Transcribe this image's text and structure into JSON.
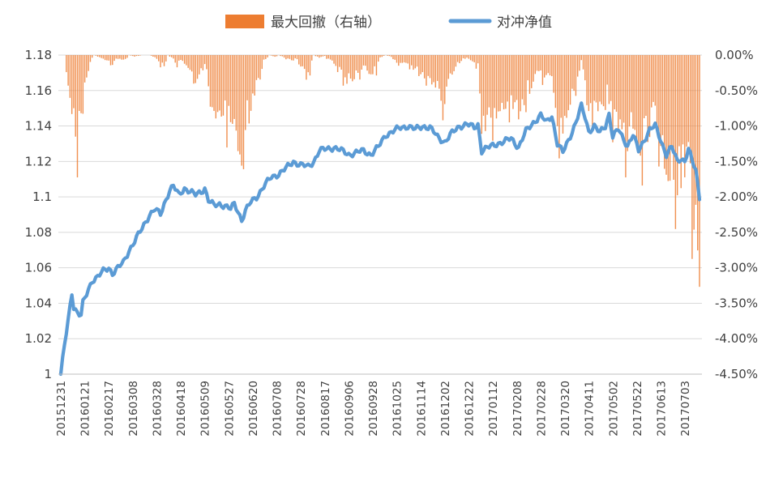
{
  "chart_data": {
    "type": "bar+line",
    "legend": [
      {
        "name": "最大回撤（右轴）",
        "color": "#ED7D31",
        "kind": "bar"
      },
      {
        "name": "对冲净值",
        "color": "#5B9BD5",
        "kind": "line"
      }
    ],
    "legend_placement": "top-center",
    "left_axis": {
      "ylim": [
        1.0,
        1.18
      ],
      "ticks": [
        1,
        1.02,
        1.04,
        1.06,
        1.08,
        1.1,
        1.12,
        1.14,
        1.16,
        1.18
      ],
      "tick_labels": [
        "1",
        "1.02",
        "1.04",
        "1.06",
        "1.08",
        "1.1",
        "1.12",
        "1.14",
        "1.16",
        "1.18"
      ]
    },
    "right_axis": {
      "ylim": [
        -0.045,
        0.0
      ],
      "ticks": [
        0,
        -0.005,
        -0.01,
        -0.015,
        -0.02,
        -0.025,
        -0.03,
        -0.035,
        -0.04,
        -0.045
      ],
      "tick_labels": [
        "0.00%",
        "-0.50%",
        "-1.00%",
        "-1.50%",
        "-2.00%",
        "-2.50%",
        "-3.00%",
        "-3.50%",
        "-4.00%",
        "-4.50%"
      ]
    },
    "x_tick_labels": [
      "20151231",
      "20160121",
      "20160217",
      "20160308",
      "20160328",
      "20160418",
      "20160509",
      "20160527",
      "20160620",
      "20160708",
      "20160728",
      "20160817",
      "20160906",
      "20160928",
      "20161025",
      "20161114",
      "20161202",
      "20161222",
      "20170112",
      "20170208",
      "20170228",
      "20170320",
      "20170411",
      "20170502",
      "20170522",
      "20170613",
      "20170703"
    ],
    "grid": {
      "horizontal": true,
      "vertical": false
    },
    "series": [
      {
        "name": "对冲净值",
        "kind": "line",
        "axis": "left",
        "anchors": [
          [
            0,
            1.0
          ],
          [
            2,
            1.016
          ],
          [
            4,
            1.03
          ],
          [
            6,
            1.046
          ],
          [
            7,
            1.038
          ],
          [
            9,
            1.035
          ],
          [
            11,
            1.033
          ],
          [
            12,
            1.04
          ],
          [
            14,
            1.045
          ],
          [
            17,
            1.053
          ],
          [
            20,
            1.055
          ],
          [
            23,
            1.058
          ],
          [
            26,
            1.06
          ],
          [
            28,
            1.057
          ],
          [
            31,
            1.06
          ],
          [
            34,
            1.063
          ],
          [
            37,
            1.07
          ],
          [
            40,
            1.075
          ],
          [
            44,
            1.082
          ],
          [
            48,
            1.09
          ],
          [
            51,
            1.093
          ],
          [
            54,
            1.09
          ],
          [
            56,
            1.096
          ],
          [
            59,
            1.104
          ],
          [
            61,
            1.106
          ],
          [
            64,
            1.101
          ],
          [
            67,
            1.105
          ],
          [
            70,
            1.103
          ],
          [
            73,
            1.101
          ],
          [
            76,
            1.103
          ],
          [
            78,
            1.105
          ],
          [
            80,
            1.098
          ],
          [
            83,
            1.095
          ],
          [
            86,
            1.096
          ],
          [
            89,
            1.095
          ],
          [
            92,
            1.093
          ],
          [
            94,
            1.096
          ],
          [
            96,
            1.092
          ],
          [
            98,
            1.087
          ],
          [
            100,
            1.092
          ],
          [
            103,
            1.097
          ],
          [
            106,
            1.1
          ],
          [
            110,
            1.106
          ],
          [
            114,
            1.111
          ],
          [
            118,
            1.113
          ],
          [
            122,
            1.116
          ],
          [
            126,
            1.12
          ],
          [
            130,
            1.118
          ],
          [
            134,
            1.117
          ],
          [
            137,
            1.12
          ],
          [
            140,
            1.126
          ],
          [
            144,
            1.127
          ],
          [
            148,
            1.128
          ],
          [
            152,
            1.126
          ],
          [
            156,
            1.124
          ],
          [
            160,
            1.125
          ],
          [
            164,
            1.126
          ],
          [
            168,
            1.124
          ],
          [
            172,
            1.128
          ],
          [
            176,
            1.135
          ],
          [
            180,
            1.137
          ],
          [
            184,
            1.139
          ],
          [
            188,
            1.14
          ],
          [
            192,
            1.138
          ],
          [
            196,
            1.14
          ],
          [
            200,
            1.139
          ],
          [
            204,
            1.134
          ],
          [
            208,
            1.131
          ],
          [
            212,
            1.136
          ],
          [
            216,
            1.14
          ],
          [
            220,
            1.141
          ],
          [
            224,
            1.139
          ],
          [
            226,
            1.141
          ],
          [
            228,
            1.126
          ],
          [
            232,
            1.128
          ],
          [
            236,
            1.13
          ],
          [
            240,
            1.131
          ],
          [
            244,
            1.133
          ],
          [
            248,
            1.128
          ],
          [
            252,
            1.137
          ],
          [
            256,
            1.142
          ],
          [
            260,
            1.146
          ],
          [
            263,
            1.142
          ],
          [
            266,
            1.146
          ],
          [
            269,
            1.13
          ],
          [
            272,
            1.125
          ],
          [
            275,
            1.132
          ],
          [
            279,
            1.142
          ],
          [
            282,
            1.151
          ],
          [
            284,
            1.145
          ],
          [
            286,
            1.137
          ],
          [
            289,
            1.14
          ],
          [
            292,
            1.136
          ],
          [
            295,
            1.14
          ],
          [
            297,
            1.147
          ],
          [
            299,
            1.134
          ],
          [
            302,
            1.138
          ],
          [
            304,
            1.134
          ],
          [
            307,
            1.129
          ],
          [
            310,
            1.135
          ],
          [
            313,
            1.126
          ],
          [
            316,
            1.132
          ],
          [
            319,
            1.138
          ],
          [
            322,
            1.14
          ],
          [
            325,
            1.132
          ],
          [
            328,
            1.124
          ],
          [
            331,
            1.128
          ],
          [
            334,
            1.12
          ],
          [
            336,
            1.122
          ],
          [
            338,
            1.12
          ],
          [
            340,
            1.127
          ],
          [
            342,
            1.12
          ],
          [
            344,
            1.115
          ],
          [
            346,
            1.1
          ]
        ],
        "color": "#5B9BD5"
      },
      {
        "name": "最大回撤（右轴）",
        "kind": "bar",
        "axis": "right",
        "anchors": [
          [
            0,
            0
          ],
          [
            2,
            0
          ],
          [
            4,
            -0.006
          ],
          [
            6,
            -0.01
          ],
          [
            7,
            -0.012
          ],
          [
            9,
            -0.015
          ],
          [
            11,
            -0.013
          ],
          [
            12,
            -0.009
          ],
          [
            14,
            -0.005
          ],
          [
            16,
            -0.001
          ],
          [
            18,
            0
          ],
          [
            22,
            -0.0005
          ],
          [
            26,
            -0.001
          ],
          [
            28,
            -0.0015
          ],
          [
            30,
            -0.0005
          ],
          [
            34,
            -0.001
          ],
          [
            37,
            0
          ],
          [
            40,
            -0.0003
          ],
          [
            44,
            0
          ],
          [
            48,
            0
          ],
          [
            51,
            -0.0005
          ],
          [
            54,
            -0.0015
          ],
          [
            56,
            -0.002
          ],
          [
            58,
            0
          ],
          [
            60,
            -0.0005
          ],
          [
            63,
            -0.0015
          ],
          [
            66,
            -0.001
          ],
          [
            70,
            -0.0025
          ],
          [
            73,
            -0.004
          ],
          [
            76,
            -0.003
          ],
          [
            78,
            -0.002
          ],
          [
            80,
            -0.005
          ],
          [
            83,
            -0.009
          ],
          [
            86,
            -0.01
          ],
          [
            89,
            -0.011
          ],
          [
            92,
            -0.012
          ],
          [
            94,
            -0.01
          ],
          [
            96,
            -0.014
          ],
          [
            98,
            -0.016
          ],
          [
            100,
            -0.012
          ],
          [
            102,
            -0.01
          ],
          [
            104,
            -0.007
          ],
          [
            106,
            -0.005
          ],
          [
            110,
            -0.001
          ],
          [
            113,
            0
          ],
          [
            116,
            -0.0003
          ],
          [
            118,
            0
          ],
          [
            121,
            -0.0004
          ],
          [
            124,
            -0.001
          ],
          [
            127,
            -0.0005
          ],
          [
            130,
            -0.002
          ],
          [
            133,
            -0.0035
          ],
          [
            135,
            -0.0025
          ],
          [
            137,
            0
          ],
          [
            140,
            -0.0005
          ],
          [
            143,
            -0.0002
          ],
          [
            146,
            -0.001
          ],
          [
            149,
            -0.002
          ],
          [
            152,
            -0.0035
          ],
          [
            156,
            -0.0045
          ],
          [
            159,
            -0.004
          ],
          [
            162,
            -0.003
          ],
          [
            165,
            -0.002
          ],
          [
            168,
            -0.0035
          ],
          [
            171,
            -0.0025
          ],
          [
            173,
            -0.0005
          ],
          [
            176,
            0
          ],
          [
            180,
            -0.0005
          ],
          [
            184,
            -0.002
          ],
          [
            188,
            -0.0015
          ],
          [
            192,
            -0.0025
          ],
          [
            196,
            -0.0035
          ],
          [
            200,
            -0.004
          ],
          [
            204,
            -0.006
          ],
          [
            207,
            -0.008
          ],
          [
            209,
            -0.006
          ],
          [
            212,
            -0.003
          ],
          [
            216,
            -0.001
          ],
          [
            220,
            -0.0005
          ],
          [
            223,
            -0.001
          ],
          [
            226,
            -0.002
          ],
          [
            228,
            -0.012
          ],
          [
            232,
            -0.011
          ],
          [
            236,
            -0.01
          ],
          [
            240,
            -0.009
          ],
          [
            244,
            -0.008
          ],
          [
            248,
            -0.012
          ],
          [
            252,
            -0.007
          ],
          [
            256,
            -0.004
          ],
          [
            260,
            -0.003
          ],
          [
            263,
            -0.005
          ],
          [
            266,
            -0.003
          ],
          [
            269,
            -0.012
          ],
          [
            272,
            -0.014
          ],
          [
            275,
            -0.01
          ],
          [
            279,
            -0.005
          ],
          [
            282,
            -0.001
          ],
          [
            284,
            -0.005
          ],
          [
            286,
            -0.01
          ],
          [
            289,
            -0.009
          ],
          [
            292,
            -0.011
          ],
          [
            295,
            -0.009
          ],
          [
            297,
            -0.006
          ],
          [
            299,
            -0.013
          ],
          [
            302,
            -0.011
          ],
          [
            304,
            -0.013
          ],
          [
            307,
            -0.016
          ],
          [
            310,
            -0.013
          ],
          [
            313,
            -0.018
          ],
          [
            316,
            -0.015
          ],
          [
            319,
            -0.012
          ],
          [
            322,
            -0.011
          ],
          [
            325,
            -0.015
          ],
          [
            328,
            -0.02
          ],
          [
            331,
            -0.018
          ],
          [
            334,
            -0.023
          ],
          [
            336,
            -0.022
          ],
          [
            338,
            -0.023
          ],
          [
            340,
            -0.02
          ],
          [
            342,
            -0.025
          ],
          [
            344,
            -0.028
          ],
          [
            345,
            -0.035
          ],
          [
            346,
            -0.041
          ]
        ],
        "color": "#ED7D31"
      }
    ]
  }
}
